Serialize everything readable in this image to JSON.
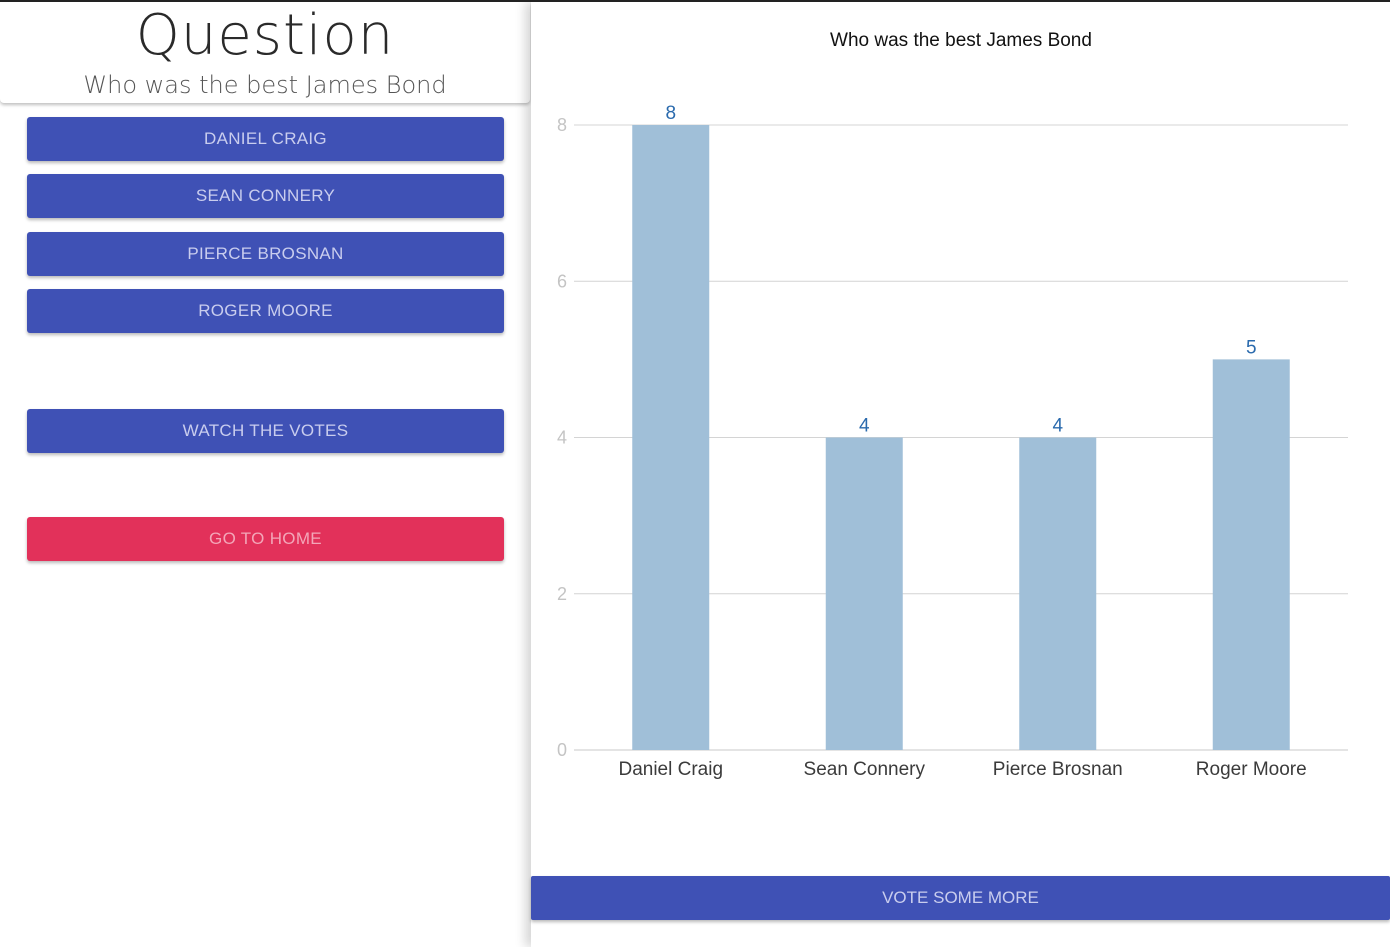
{
  "question": {
    "heading": "Question",
    "text": "Who was the best James Bond"
  },
  "options": [
    {
      "label": "DANIEL CRAIG"
    },
    {
      "label": "SEAN CONNERY"
    },
    {
      "label": "PIERCE BROSNAN"
    },
    {
      "label": "ROGER MOORE"
    }
  ],
  "actions": {
    "watch_votes": "WATCH THE VOTES",
    "go_home": "GO TO HOME",
    "vote_more": "VOTE SOME MORE"
  },
  "colors": {
    "primary": "#3f51b5",
    "accent": "#e2315a",
    "bar": "#a0bfd8",
    "data_label": "#2a6aad"
  },
  "chart_data": {
    "type": "bar",
    "title": "Who was the best James Bond",
    "categories": [
      "Daniel Craig",
      "Sean Connery",
      "Pierce Brosnan",
      "Roger Moore"
    ],
    "values": [
      8,
      4,
      4,
      5
    ],
    "yticks": [
      0,
      2,
      4,
      6,
      8
    ],
    "ylim": [
      0,
      8
    ],
    "grid": true,
    "legend": "none"
  }
}
